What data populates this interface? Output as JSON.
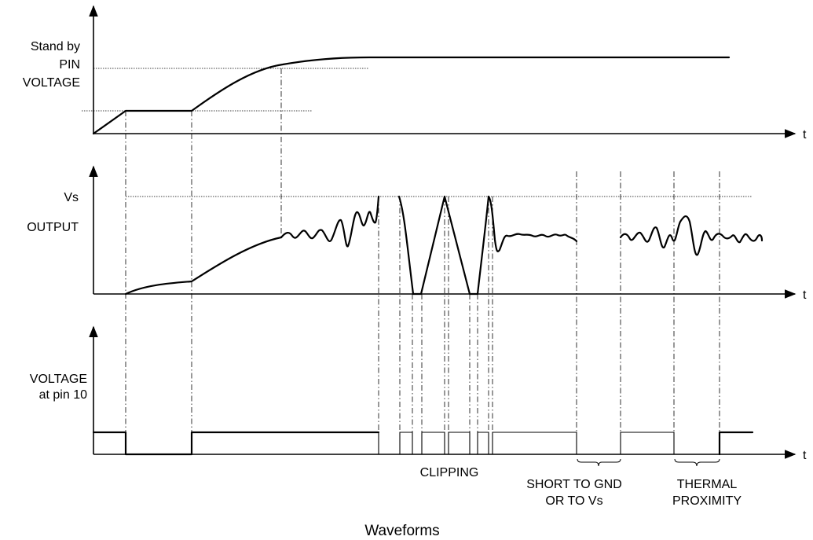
{
  "panels": {
    "standby": {
      "label_lines": [
        "Stand by",
        "PIN",
        "VOLTAGE"
      ],
      "t_label": "t"
    },
    "output": {
      "vs_label": "Vs",
      "label": "OUTPUT",
      "t_label": "t"
    },
    "pin10": {
      "label_lines": [
        "VOLTAGE",
        "at pin 10"
      ],
      "t_label": "t"
    }
  },
  "annotations": {
    "clipping": "CLIPPING",
    "short_lines": [
      "SHORT TO GND",
      "OR TO Vs"
    ],
    "thermal_lines": [
      "THERMAL",
      "PROXIMITY"
    ]
  },
  "caption": "Waveforms"
}
